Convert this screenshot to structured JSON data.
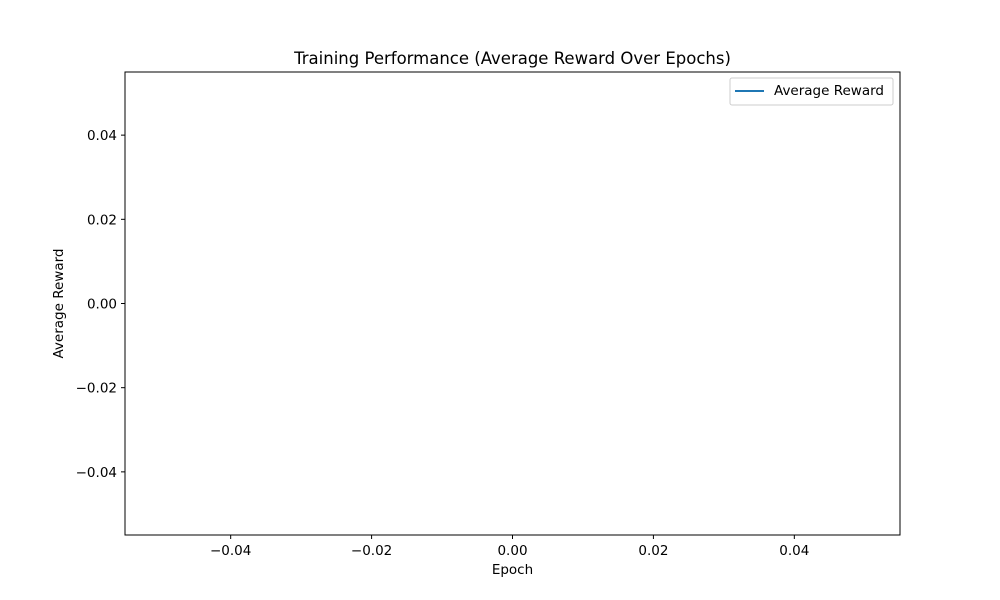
{
  "chart_data": {
    "type": "line",
    "title": "Training Performance (Average Reward Over Epochs)",
    "xlabel": "Epoch",
    "ylabel": "Average Reward",
    "xlim": [
      -0.055,
      0.055
    ],
    "ylim": [
      -0.055,
      0.055
    ],
    "x_ticks": [
      -0.04,
      -0.02,
      0.0,
      0.02,
      0.04
    ],
    "y_ticks": [
      -0.04,
      -0.02,
      0.0,
      0.02,
      0.04
    ],
    "x_tick_labels": [
      "−0.04",
      "−0.02",
      "0.00",
      "0.02",
      "0.04"
    ],
    "y_tick_labels": [
      "−0.04",
      "−0.02",
      "0.00",
      "0.02",
      "0.04"
    ],
    "grid": false,
    "legend_position": "top-right",
    "series": [
      {
        "name": "Average Reward",
        "color": "#1f77b4",
        "x": [],
        "y": []
      }
    ]
  }
}
